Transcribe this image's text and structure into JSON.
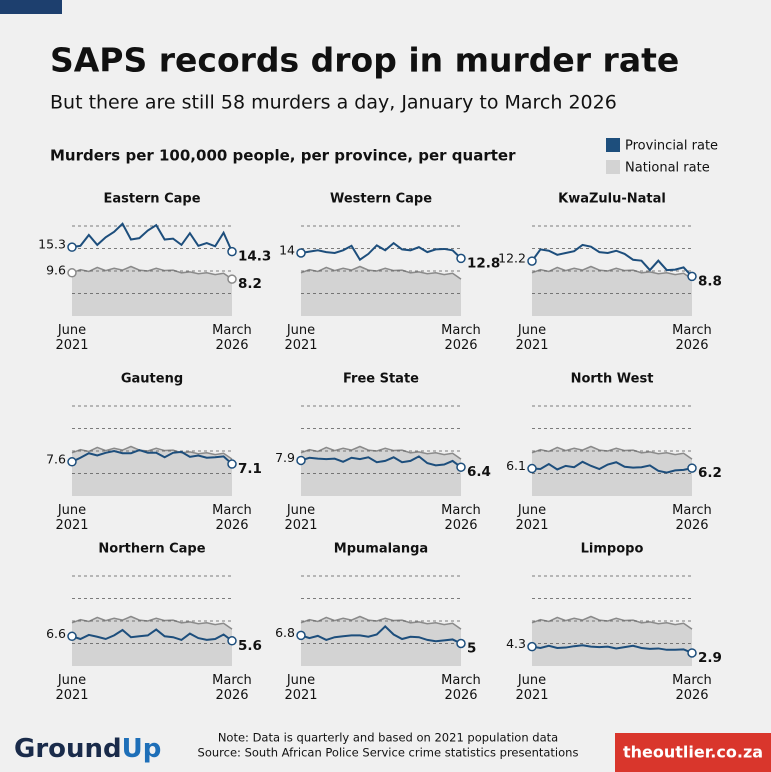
{
  "header": {
    "title": "SAPS records drop in murder rate",
    "subtitle": "But there are still 58 murders a day, January to March 2026",
    "chart_heading": "Murders per 100,000 people, per province, per quarter"
  },
  "footer": {
    "note": "Note: Data is quarterly and based on 2021 population data",
    "source": "Source: South African Police Service crime statistics presentations",
    "logo_left": "Ground",
    "logo_right": "Up",
    "site": "theoutlier.co.za"
  },
  "chart_data": [
    {
      "type": "line",
      "title": "Eastern Cape",
      "categories": [
        "June 2021",
        null,
        null,
        null,
        null,
        null,
        null,
        null,
        null,
        null,
        null,
        null,
        null,
        null,
        null,
        null,
        null,
        null,
        null,
        "March 2026"
      ],
      "ylim": [
        0,
        22
      ],
      "yticks": [
        5,
        10,
        15,
        20
      ],
      "grid": true,
      "series": [
        {
          "name": "Provincial rate",
          "color": "#1d4e7c",
          "endpoint_labels": true,
          "values": [
            15.3,
            15.6,
            18.0,
            15.8,
            17.5,
            18.7,
            20.5,
            17.0,
            17.3,
            19.0,
            20.2,
            17.0,
            17.2,
            15.8,
            18.4,
            15.6,
            16.2,
            15.5,
            18.5,
            14.3
          ]
        },
        {
          "name": "National rate",
          "color": "#d3d3d3",
          "endpoint_labels": true,
          "values": [
            9.6,
            10.3,
            9.9,
            10.8,
            10.1,
            10.6,
            10.2,
            11.0,
            10.2,
            10.0,
            10.6,
            10.1,
            10.2,
            9.6,
            9.8,
            9.4,
            9.6,
            9.2,
            9.5,
            8.2
          ]
        }
      ]
    },
    {
      "type": "line",
      "title": "Western Cape",
      "categories": [
        "June 2021",
        null,
        null,
        null,
        null,
        null,
        null,
        null,
        null,
        null,
        null,
        null,
        null,
        null,
        null,
        null,
        null,
        null,
        null,
        "March 2026"
      ],
      "ylim": [
        0,
        22
      ],
      "yticks": [
        5,
        10,
        15,
        20
      ],
      "grid": true,
      "series": [
        {
          "name": "Provincial rate",
          "color": "#1d4e7c",
          "endpoint_labels": true,
          "values": [
            14,
            14.3,
            14.6,
            14.2,
            14.0,
            14.6,
            15.6,
            12.5,
            13.8,
            15.7,
            14.6,
            16.2,
            14.8,
            14.6,
            15.3,
            14.2,
            14.8,
            14.9,
            14.6,
            12.8
          ]
        },
        {
          "name": "National rate",
          "color": "#d3d3d3",
          "values": [
            9.6,
            10.3,
            9.9,
            10.8,
            10.1,
            10.6,
            10.2,
            11.0,
            10.2,
            10.0,
            10.6,
            10.1,
            10.2,
            9.6,
            9.8,
            9.4,
            9.6,
            9.2,
            9.5,
            8.2
          ]
        }
      ]
    },
    {
      "type": "line",
      "title": "KwaZulu-Natal",
      "categories": [
        "June 2021",
        null,
        null,
        null,
        null,
        null,
        null,
        null,
        null,
        null,
        null,
        null,
        null,
        null,
        null,
        null,
        null,
        null,
        null,
        "March 2026"
      ],
      "ylim": [
        0,
        22
      ],
      "yticks": [
        5,
        10,
        15,
        20
      ],
      "grid": true,
      "series": [
        {
          "name": "Provincial rate",
          "color": "#1d4e7c",
          "endpoint_labels": true,
          "values": [
            12.2,
            14.8,
            14.5,
            13.6,
            14.0,
            14.4,
            15.8,
            15.4,
            14.2,
            14.0,
            14.5,
            13.8,
            12.5,
            12.3,
            10.2,
            12.3,
            10.2,
            10.3,
            10.8,
            8.8
          ]
        },
        {
          "name": "National rate",
          "color": "#d3d3d3",
          "values": [
            9.6,
            10.3,
            9.9,
            10.8,
            10.1,
            10.6,
            10.2,
            11.0,
            10.2,
            10.0,
            10.6,
            10.1,
            10.2,
            9.6,
            9.8,
            9.4,
            9.6,
            9.2,
            9.5,
            8.2
          ]
        }
      ]
    },
    {
      "type": "line",
      "title": "Gauteng",
      "categories": [
        "June 2021",
        null,
        null,
        null,
        null,
        null,
        null,
        null,
        null,
        null,
        null,
        null,
        null,
        null,
        null,
        null,
        null,
        null,
        null,
        "March 2026"
      ],
      "ylim": [
        0,
        22
      ],
      "yticks": [
        5,
        10,
        15,
        20
      ],
      "grid": true,
      "series": [
        {
          "name": "Provincial rate",
          "color": "#1d4e7c",
          "endpoint_labels": true,
          "values": [
            7.6,
            8.5,
            9.5,
            9.0,
            9.6,
            10.0,
            9.5,
            9.5,
            10.2,
            9.6,
            9.6,
            8.6,
            9.6,
            9.8,
            8.7,
            9.0,
            8.5,
            8.6,
            8.8,
            7.1
          ]
        },
        {
          "name": "National rate",
          "color": "#d3d3d3",
          "values": [
            9.6,
            10.3,
            9.9,
            10.8,
            10.1,
            10.6,
            10.2,
            11.0,
            10.2,
            10.0,
            10.6,
            10.1,
            10.2,
            9.6,
            9.8,
            9.4,
            9.6,
            9.2,
            9.5,
            8.2
          ]
        }
      ]
    },
    {
      "type": "line",
      "title": "Free State",
      "categories": [
        "June 2021",
        null,
        null,
        null,
        null,
        null,
        null,
        null,
        null,
        null,
        null,
        null,
        null,
        null,
        null,
        null,
        null,
        null,
        null,
        "March 2026"
      ],
      "ylim": [
        0,
        22
      ],
      "yticks": [
        5,
        10,
        15,
        20
      ],
      "grid": true,
      "series": [
        {
          "name": "Provincial rate",
          "color": "#1d4e7c",
          "endpoint_labels": true,
          "values": [
            7.9,
            8.5,
            8.3,
            8.2,
            8.3,
            7.6,
            8.5,
            8.2,
            8.6,
            7.5,
            7.8,
            8.6,
            7.5,
            7.8,
            8.8,
            7.3,
            6.8,
            7.0,
            7.8,
            6.4
          ]
        },
        {
          "name": "National rate",
          "color": "#d3d3d3",
          "values": [
            9.6,
            10.3,
            9.9,
            10.8,
            10.1,
            10.6,
            10.2,
            11.0,
            10.2,
            10.0,
            10.6,
            10.1,
            10.2,
            9.6,
            9.8,
            9.4,
            9.6,
            9.2,
            9.5,
            8.2
          ]
        }
      ]
    },
    {
      "type": "line",
      "title": "North West",
      "categories": [
        "June 2021",
        null,
        null,
        null,
        null,
        null,
        null,
        null,
        null,
        null,
        null,
        null,
        null,
        null,
        null,
        null,
        null,
        null,
        null,
        "March 2026"
      ],
      "ylim": [
        0,
        22
      ],
      "yticks": [
        5,
        10,
        15,
        20
      ],
      "grid": true,
      "series": [
        {
          "name": "Provincial rate",
          "color": "#1d4e7c",
          "endpoint_labels": true,
          "values": [
            6.1,
            6.0,
            7.1,
            5.9,
            6.7,
            6.4,
            7.6,
            6.7,
            6.0,
            7.0,
            7.5,
            6.5,
            6.3,
            6.4,
            6.8,
            5.6,
            5.2,
            5.7,
            5.8,
            6.2
          ]
        },
        {
          "name": "National rate",
          "color": "#d3d3d3",
          "values": [
            9.6,
            10.3,
            9.9,
            10.8,
            10.1,
            10.6,
            10.2,
            11.0,
            10.2,
            10.0,
            10.6,
            10.1,
            10.2,
            9.6,
            9.8,
            9.4,
            9.6,
            9.2,
            9.5,
            8.2
          ]
        }
      ]
    },
    {
      "type": "line",
      "title": "Northern Cape",
      "categories": [
        "June 2021",
        null,
        null,
        null,
        null,
        null,
        null,
        null,
        null,
        null,
        null,
        null,
        null,
        null,
        null,
        null,
        null,
        null,
        null,
        "March 2026"
      ],
      "ylim": [
        0,
        22
      ],
      "yticks": [
        5,
        10,
        15,
        20
      ],
      "grid": true,
      "series": [
        {
          "name": "Provincial rate",
          "color": "#1d4e7c",
          "endpoint_labels": true,
          "values": [
            6.6,
            6.0,
            6.9,
            6.5,
            6.0,
            6.8,
            8.0,
            6.4,
            6.6,
            6.8,
            8.1,
            6.6,
            6.4,
            5.8,
            7.2,
            6.2,
            5.8,
            6.0,
            7.0,
            5.6
          ]
        },
        {
          "name": "National rate",
          "color": "#d3d3d3",
          "values": [
            9.6,
            10.3,
            9.9,
            10.8,
            10.1,
            10.6,
            10.2,
            11.0,
            10.2,
            10.0,
            10.6,
            10.1,
            10.2,
            9.6,
            9.8,
            9.4,
            9.6,
            9.2,
            9.5,
            8.2
          ]
        }
      ]
    },
    {
      "type": "line",
      "title": "Mpumalanga",
      "categories": [
        "June 2021",
        null,
        null,
        null,
        null,
        null,
        null,
        null,
        null,
        null,
        null,
        null,
        null,
        null,
        null,
        null,
        null,
        null,
        null,
        "March 2026"
      ],
      "ylim": [
        0,
        22
      ],
      "yticks": [
        5,
        10,
        15,
        20
      ],
      "grid": true,
      "series": [
        {
          "name": "Provincial rate",
          "color": "#1d4e7c",
          "endpoint_labels": true,
          "values": [
            6.8,
            6.2,
            6.7,
            5.8,
            6.4,
            6.6,
            6.8,
            6.8,
            6.5,
            7.0,
            8.8,
            7.0,
            6.0,
            6.5,
            6.4,
            5.8,
            5.5,
            5.7,
            5.9,
            5
          ]
        },
        {
          "name": "National rate",
          "color": "#d3d3d3",
          "values": [
            9.6,
            10.3,
            9.9,
            10.8,
            10.1,
            10.6,
            10.2,
            11.0,
            10.2,
            10.0,
            10.6,
            10.1,
            10.2,
            9.6,
            9.8,
            9.4,
            9.6,
            9.2,
            9.5,
            8.2
          ]
        }
      ]
    },
    {
      "type": "line",
      "title": "Limpopo",
      "categories": [
        "June 2021",
        null,
        null,
        null,
        null,
        null,
        null,
        null,
        null,
        null,
        null,
        null,
        null,
        null,
        null,
        null,
        null,
        null,
        null,
        "March 2026"
      ],
      "ylim": [
        0,
        22
      ],
      "yticks": [
        5,
        10,
        15,
        20
      ],
      "grid": true,
      "series": [
        {
          "name": "Provincial rate",
          "color": "#1d4e7c",
          "endpoint_labels": true,
          "values": [
            4.3,
            4.0,
            4.5,
            4.0,
            4.1,
            4.4,
            4.6,
            4.3,
            4.2,
            4.3,
            3.9,
            4.2,
            4.5,
            4.0,
            3.8,
            3.9,
            3.6,
            3.6,
            3.7,
            2.9
          ]
        },
        {
          "name": "National rate",
          "color": "#d3d3d3",
          "values": [
            9.6,
            10.3,
            9.9,
            10.8,
            10.1,
            10.6,
            10.2,
            11.0,
            10.2,
            10.0,
            10.6,
            10.1,
            10.2,
            9.6,
            9.8,
            9.4,
            9.6,
            9.2,
            9.5,
            8.2
          ]
        }
      ]
    }
  ]
}
